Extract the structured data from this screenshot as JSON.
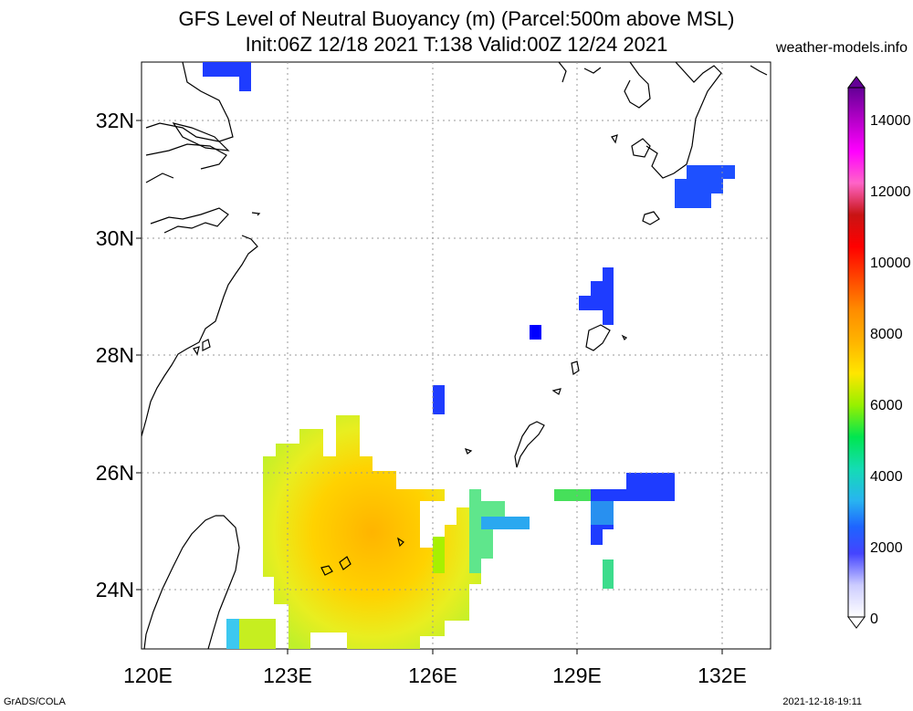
{
  "header": {
    "title_line1": "GFS Level of Neutral Buoyancy (m) (Parcel:500m above MSL)",
    "title_line2": "Init:06Z 12/18 2021 T:138 Valid:00Z 12/24 2021",
    "site": "weather-models.info"
  },
  "footer": {
    "left": "GrADS/COLA",
    "right": "2021-12-18-19:11"
  },
  "map": {
    "lon_range": [
      120,
      133
    ],
    "lat_range": [
      23,
      33
    ],
    "lon_labels": [
      "120E",
      "123E",
      "126E",
      "129E",
      "132E"
    ],
    "lat_labels": [
      "32N",
      "30N",
      "28N",
      "26N",
      "24N"
    ],
    "grid_style": "dotted",
    "coastline_color": "#000000"
  },
  "colorbar": {
    "labels": [
      "14000",
      "12000",
      "10000",
      "8000",
      "6000",
      "4000",
      "2000",
      "0"
    ],
    "min": 0,
    "max": 15000,
    "colors": [
      "#ffffff",
      "#d9d9ff",
      "#aaaaff",
      "#5555ff",
      "#0000ff",
      "#1e50ff",
      "#3c8cff",
      "#28c8e6",
      "#14dcb4",
      "#00e650",
      "#64f000",
      "#c8f000",
      "#ffe600",
      "#ffc800",
      "#ffaa00",
      "#ff8c00",
      "#ff5000",
      "#ff0000",
      "#dc0000",
      "#b41e1e",
      "#ff64c8",
      "#ff00ff",
      "#c800c8",
      "#8c00aa",
      "#640096"
    ]
  }
}
